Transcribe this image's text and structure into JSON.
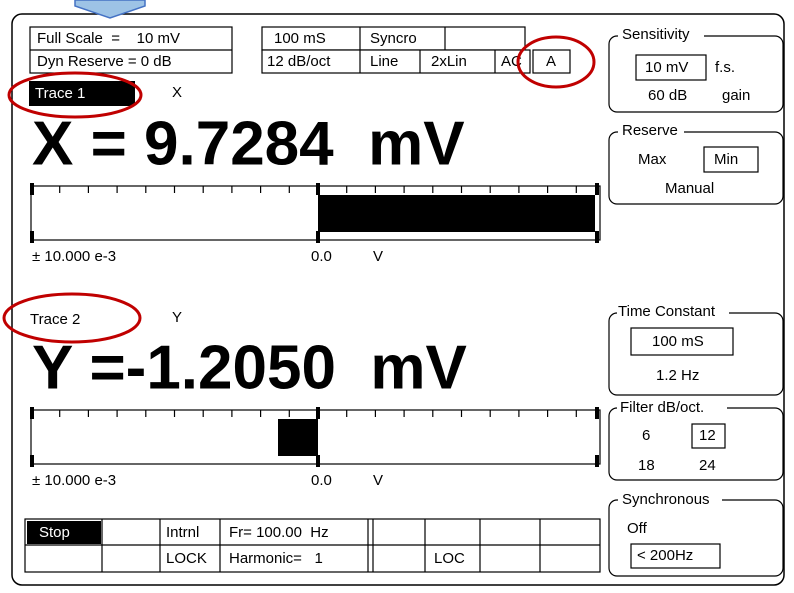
{
  "header": {
    "full_scale": "Full Scale  =    10 mV",
    "dyn_reserve": "Dyn Reserve = 0 dB",
    "time_constant": "100 mS",
    "sync": "Syncro",
    "slope": "12 dB/oct",
    "line_filter": "Line",
    "line_2x": "2xLin",
    "coupling": "AC",
    "input": "A"
  },
  "traces": [
    {
      "label": "Trace 1",
      "channel": "X",
      "reading": "X = 9.7284  mV",
      "scale": "± 10.000 e-3",
      "zero": "0.0",
      "unit": "V"
    },
    {
      "label": "Trace 2",
      "channel": "Y",
      "reading": "Y =-1.2050  mV",
      "scale": "± 10.000 e-3",
      "zero": "0.0",
      "unit": "V"
    }
  ],
  "status": {
    "stop": "Stop",
    "ref_source": "Intrnl",
    "ref_mode": "LOCK",
    "frequency": "Fr= 100.00  Hz",
    "harmonic": "Harmonic=   1",
    "loc": "LOC"
  },
  "panels": {
    "sensitivity": {
      "title": "Sensitivity",
      "value": "10 mV",
      "value_unit": "f.s.",
      "gain": "60 dB",
      "gain_unit": "gain"
    },
    "reserve": {
      "title": "Reserve",
      "max": "Max",
      "min": "Min",
      "mode": "Manual"
    },
    "time_constant": {
      "title": "Time Constant",
      "value": "100 mS",
      "frequency": "1.2 Hz"
    },
    "filter": {
      "title": "Filter dB/oct.",
      "opt1": "6",
      "opt2": "12",
      "opt3": "18",
      "opt4": "24"
    },
    "synchronous": {
      "title": "Synchronous",
      "state": "Off",
      "range": "< 200Hz"
    }
  }
}
